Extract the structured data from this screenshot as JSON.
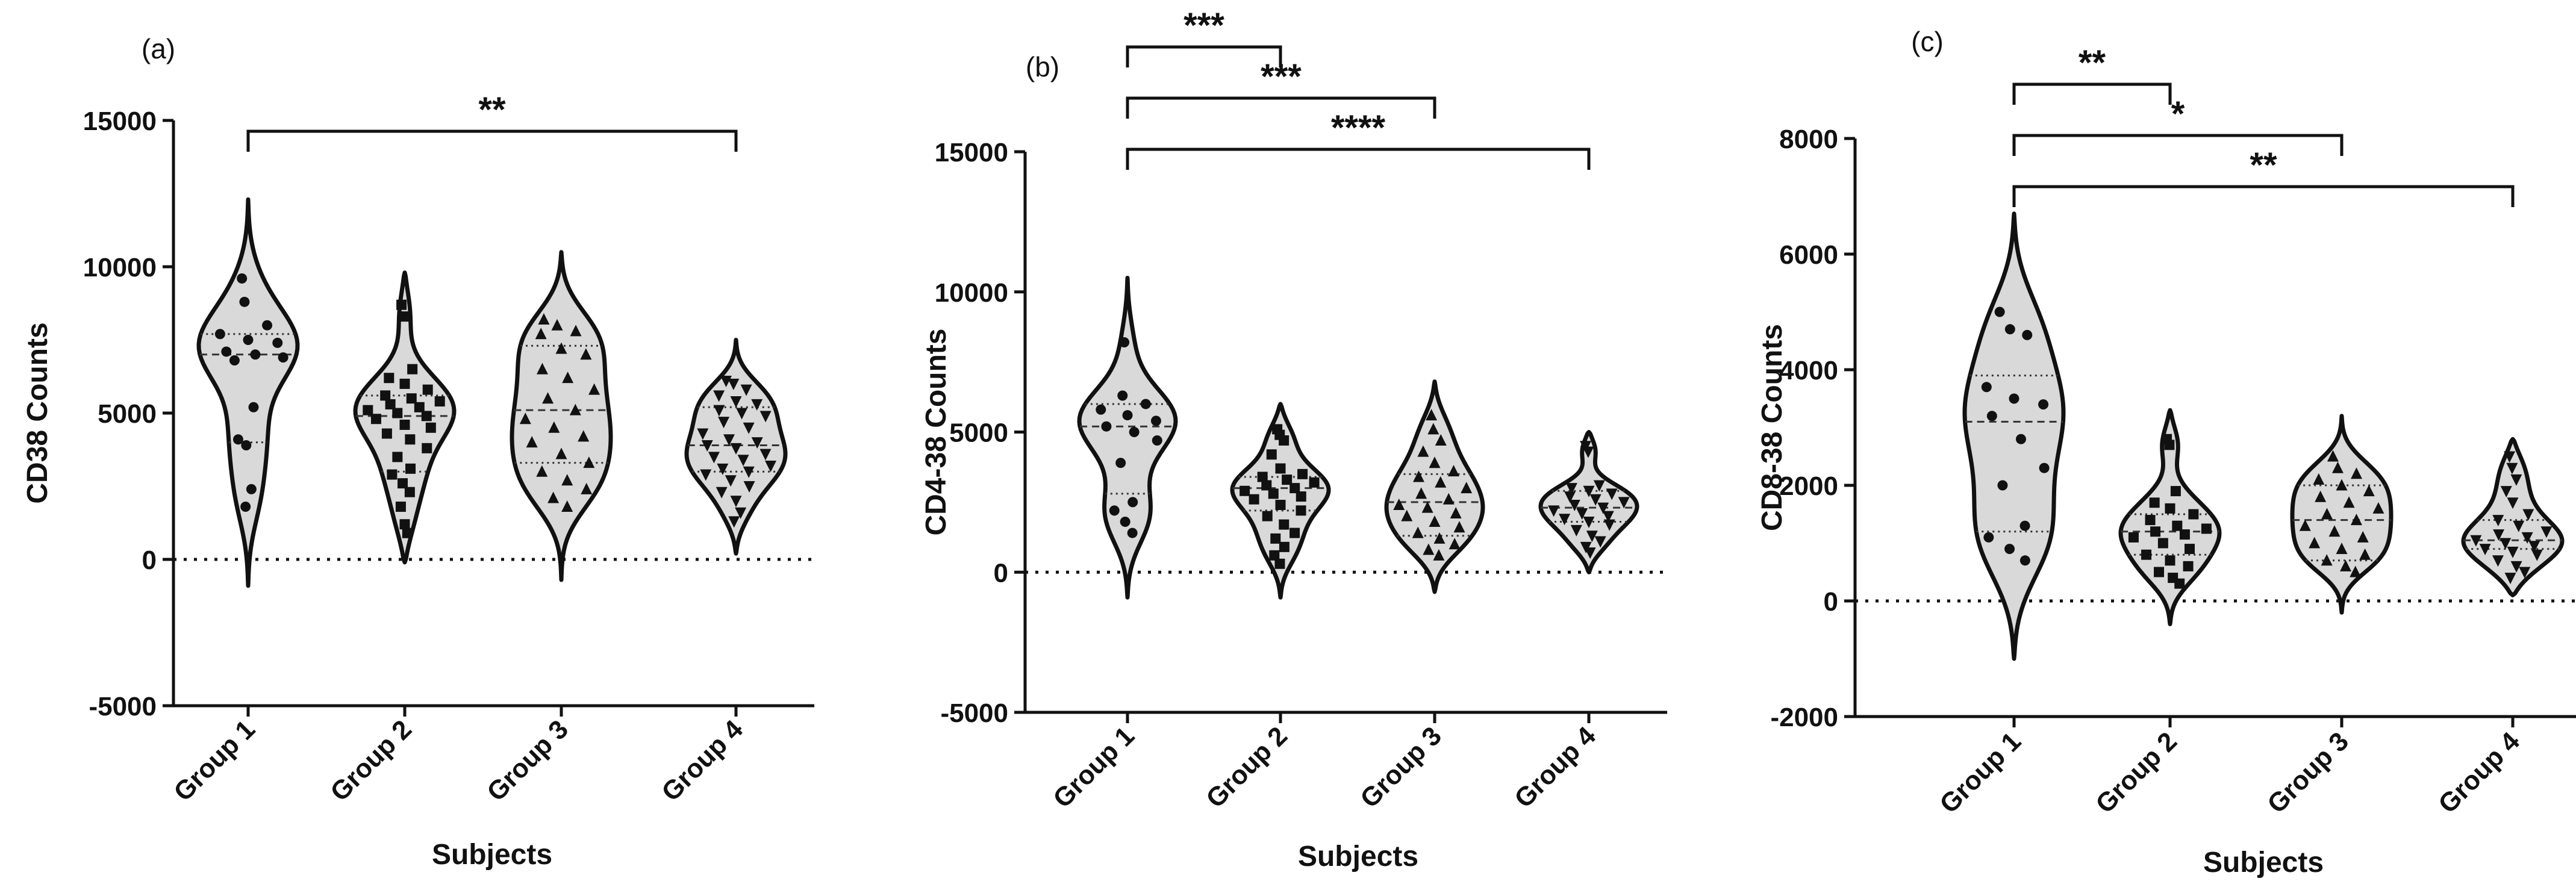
{
  "chart_data": [
    {
      "type": "violin",
      "panel_label": "(a)",
      "xlabel": "Subjects",
      "ylabel": "CD38 Counts",
      "categories": [
        "Group 1",
        "Group 2",
        "Group 3",
        "Group 4"
      ],
      "ylim": [
        -5000,
        15000
      ],
      "yticks": [
        "-5000",
        "0",
        "5000",
        "10000",
        "15000"
      ],
      "reference_line_y": 0,
      "significance": [
        {
          "from": "Group 1",
          "to": "Group 4",
          "label": "**"
        }
      ],
      "series": [
        {
          "category": "Group 1",
          "marker": "circle",
          "median": 7000,
          "q1": 4000,
          "q3": 7700,
          "range": [
            -900,
            12300
          ],
          "values": [
            9600,
            8800,
            8000,
            7700,
            7500,
            7400,
            7100,
            7000,
            6900,
            6800,
            5200,
            4100,
            3900,
            2400,
            1800
          ]
        },
        {
          "category": "Group 2",
          "marker": "square",
          "median": 4900,
          "q1": 3000,
          "q3": 5600,
          "range": [
            -100,
            9800
          ],
          "values": [
            8700,
            8300,
            6500,
            6200,
            6000,
            5800,
            5600,
            5500,
            5400,
            5300,
            5200,
            5100,
            5000,
            4900,
            4800,
            4600,
            4500,
            4300,
            4100,
            3800,
            3500,
            3100,
            2900,
            2600,
            2300,
            1800,
            1200,
            900
          ]
        },
        {
          "category": "Group 3",
          "marker": "triangle-up",
          "median": 5100,
          "q1": 3300,
          "q3": 7300,
          "range": [
            -700,
            10500
          ],
          "values": [
            8200,
            8000,
            7800,
            7700,
            7200,
            7000,
            6500,
            6200,
            5800,
            5500,
            5100,
            4800,
            4500,
            4200,
            4000,
            3600,
            3300,
            3000,
            2700,
            2400,
            2100,
            1800
          ]
        },
        {
          "category": "Group 4",
          "marker": "triangle-down",
          "median": 3900,
          "q1": 3000,
          "q3": 5200,
          "range": [
            200,
            7500
          ],
          "values": [
            6100,
            6000,
            5800,
            5600,
            5400,
            5300,
            5100,
            5000,
            4900,
            4700,
            4500,
            4300,
            4100,
            4000,
            3900,
            3800,
            3600,
            3500,
            3400,
            3200,
            3100,
            3000,
            2900,
            2700,
            2500,
            2300,
            2000,
            1600,
            1300
          ]
        }
      ]
    },
    {
      "type": "violin",
      "panel_label": "(b)",
      "xlabel": "Subjects",
      "ylabel": "CD4-38 Counts",
      "categories": [
        "Group 1",
        "Group 2",
        "Group 3",
        "Group 4"
      ],
      "ylim": [
        -5000,
        15000
      ],
      "yticks": [
        "-5000",
        "0",
        "5000",
        "10000",
        "15000"
      ],
      "reference_line_y": 0,
      "significance": [
        {
          "from": "Group 1",
          "to": "Group 2",
          "label": "***"
        },
        {
          "from": "Group 1",
          "to": "Group 3",
          "label": "***"
        },
        {
          "from": "Group 1",
          "to": "Group 4",
          "label": "****"
        }
      ],
      "series": [
        {
          "category": "Group 1",
          "marker": "circle",
          "median": 5200,
          "q1": 2800,
          "q3": 6000,
          "range": [
            -900,
            10500
          ],
          "values": [
            8200,
            6300,
            6000,
            5800,
            5600,
            5400,
            5200,
            5000,
            4700,
            3900,
            2500,
            2200,
            1800,
            1400
          ]
        },
        {
          "category": "Group 2",
          "marker": "square",
          "median": 3000,
          "q1": 2200,
          "q3": 3400,
          "range": [
            -900,
            6000
          ],
          "values": [
            5100,
            4900,
            4700,
            4200,
            3700,
            3500,
            3400,
            3300,
            3200,
            3100,
            3000,
            2900,
            2800,
            2700,
            2600,
            2400,
            2200,
            2000,
            1700,
            1400,
            1200,
            900,
            600,
            300
          ]
        },
        {
          "category": "Group 3",
          "marker": "triangle-up",
          "median": 2500,
          "q1": 1300,
          "q3": 3500,
          "range": [
            -700,
            6800
          ],
          "values": [
            5600,
            5100,
            4700,
            4300,
            3900,
            3600,
            3400,
            3200,
            3000,
            2800,
            2600,
            2400,
            2300,
            2100,
            2000,
            1800,
            1600,
            1400,
            1200,
            1000,
            800,
            600
          ]
        },
        {
          "category": "Group 4",
          "marker": "triangle-down",
          "median": 2300,
          "q1": 1800,
          "q3": 2900,
          "range": [
            0,
            5000
          ],
          "values": [
            4500,
            4300,
            3100,
            3000,
            2900,
            2800,
            2700,
            2600,
            2500,
            2400,
            2300,
            2200,
            2100,
            2000,
            1900,
            1800,
            1700,
            1500,
            1300,
            1100,
            900,
            700
          ]
        }
      ]
    },
    {
      "type": "violin",
      "panel_label": "(c)",
      "xlabel": "Subjects",
      "ylabel": "CD8-38 Counts",
      "categories": [
        "Group 1",
        "Group 2",
        "Group 3",
        "Group 4"
      ],
      "ylim": [
        -2000,
        8000
      ],
      "yticks": [
        "-2000",
        "0",
        "2000",
        "4000",
        "6000",
        "8000"
      ],
      "reference_line_y": 0,
      "significance": [
        {
          "from": "Group 1",
          "to": "Group 2",
          "label": "**"
        },
        {
          "from": "Group 1",
          "to": "Group 3",
          "label": "*"
        },
        {
          "from": "Group 1",
          "to": "Group 4",
          "label": "**"
        }
      ],
      "series": [
        {
          "category": "Group 1",
          "marker": "circle",
          "median": 3100,
          "q1": 1200,
          "q3": 3900,
          "range": [
            -1000,
            6700
          ],
          "values": [
            5000,
            4700,
            4600,
            3700,
            3500,
            3400,
            3200,
            2800,
            2300,
            2000,
            1300,
            1100,
            900,
            700
          ]
        },
        {
          "category": "Group 2",
          "marker": "square",
          "median": 1200,
          "q1": 800,
          "q3": 1500,
          "range": [
            -400,
            3300
          ],
          "values": [
            2800,
            2700,
            1900,
            1700,
            1600,
            1500,
            1400,
            1300,
            1250,
            1200,
            1150,
            1100,
            1000,
            900,
            800,
            700,
            600,
            500,
            400,
            300
          ]
        },
        {
          "category": "Group 3",
          "marker": "triangle-up",
          "median": 1400,
          "q1": 700,
          "q3": 2000,
          "range": [
            -200,
            3200
          ],
          "values": [
            2500,
            2300,
            2200,
            2100,
            2000,
            1900,
            1800,
            1700,
            1600,
            1500,
            1400,
            1300,
            1200,
            1100,
            1000,
            900,
            800,
            700,
            600,
            500
          ]
        },
        {
          "category": "Group 4",
          "marker": "triangle-down",
          "median": 1050,
          "q1": 900,
          "q3": 1400,
          "range": [
            100,
            2800
          ],
          "values": [
            2500,
            2300,
            2100,
            1900,
            1700,
            1500,
            1400,
            1300,
            1200,
            1150,
            1100,
            1050,
            1000,
            950,
            900,
            850,
            800,
            700,
            600,
            500,
            400
          ]
        }
      ]
    }
  ]
}
